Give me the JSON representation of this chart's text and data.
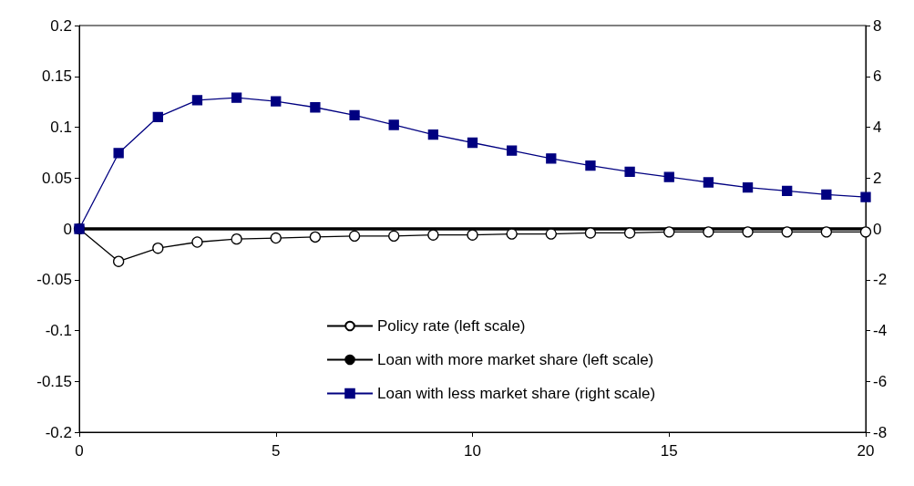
{
  "chart_data": {
    "type": "line",
    "x": [
      0,
      1,
      2,
      3,
      4,
      5,
      6,
      7,
      8,
      9,
      10,
      11,
      12,
      13,
      14,
      15,
      16,
      17,
      18,
      19,
      20
    ],
    "series": [
      {
        "name": "Policy rate (left scale)",
        "color": "#000000",
        "marker": "circle",
        "values": [
          0,
          -0.032,
          -0.019,
          -0.013,
          -0.01,
          -0.009,
          -0.008,
          -0.007,
          -0.007,
          -0.006,
          -0.006,
          -0.005,
          -0.005,
          -0.004,
          -0.004,
          -0.003,
          -0.003,
          -0.003,
          -0.003,
          -0.003,
          -0.003
        ]
      },
      {
        "name": "Loan with more market share (left scale)",
        "color": "#000000",
        "marker": "none",
        "values": [
          0,
          0,
          0,
          0,
          0,
          0,
          0,
          0,
          0,
          0,
          0,
          0,
          0,
          0,
          0,
          0,
          0,
          0,
          0,
          0,
          0
        ]
      },
      {
        "name": "Loan with less market share (right scale)",
        "color": "#000080",
        "marker": "square",
        "axis": "y2",
        "values": [
          0,
          2.98,
          4.4,
          5.06,
          5.16,
          5.02,
          4.78,
          4.47,
          4.09,
          3.71,
          3.39,
          3.08,
          2.77,
          2.49,
          2.25,
          2.04,
          1.83,
          1.63,
          1.49,
          1.35,
          1.25
        ]
      }
    ],
    "xlim": [
      0,
      20
    ],
    "xticks": [
      0,
      5,
      10,
      15,
      20
    ],
    "ylim": [
      -0.2,
      0.2
    ],
    "yticks": [
      -0.2,
      -0.15,
      -0.1,
      -0.05,
      0,
      0.05,
      0.1,
      0.15,
      0.2
    ],
    "y2lim": [
      -8,
      8
    ],
    "y2ticks": [
      -8,
      -6,
      -4,
      -2,
      0,
      2,
      4,
      6,
      8
    ],
    "grid": false,
    "legend": "bottom",
    "line_style": "solid"
  }
}
